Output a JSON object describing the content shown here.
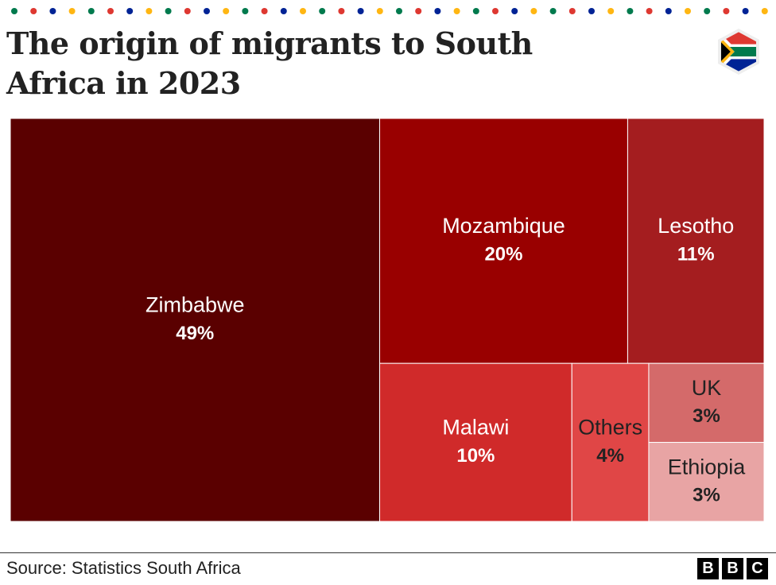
{
  "chart_data": {
    "type": "treemap",
    "title": "The origin of migrants to South Africa in 2023",
    "categories": [
      "Zimbabwe",
      "Mozambique",
      "Lesotho",
      "Malawi",
      "Others",
      "UK",
      "Ethiopia"
    ],
    "values": [
      49,
      20,
      11,
      10,
      4,
      3,
      3
    ],
    "value_labels": [
      "49%",
      "20%",
      "11%",
      "10%",
      "4%",
      "3%",
      "3%"
    ],
    "colors": [
      "#5a0000",
      "#990000",
      "#a41d1f",
      "#d02a2a",
      "#e04646",
      "#d46a6a",
      "#e8a4a4"
    ],
    "source": "Source: Statistics South Africa"
  },
  "brand": [
    "B",
    "B",
    "C"
  ]
}
